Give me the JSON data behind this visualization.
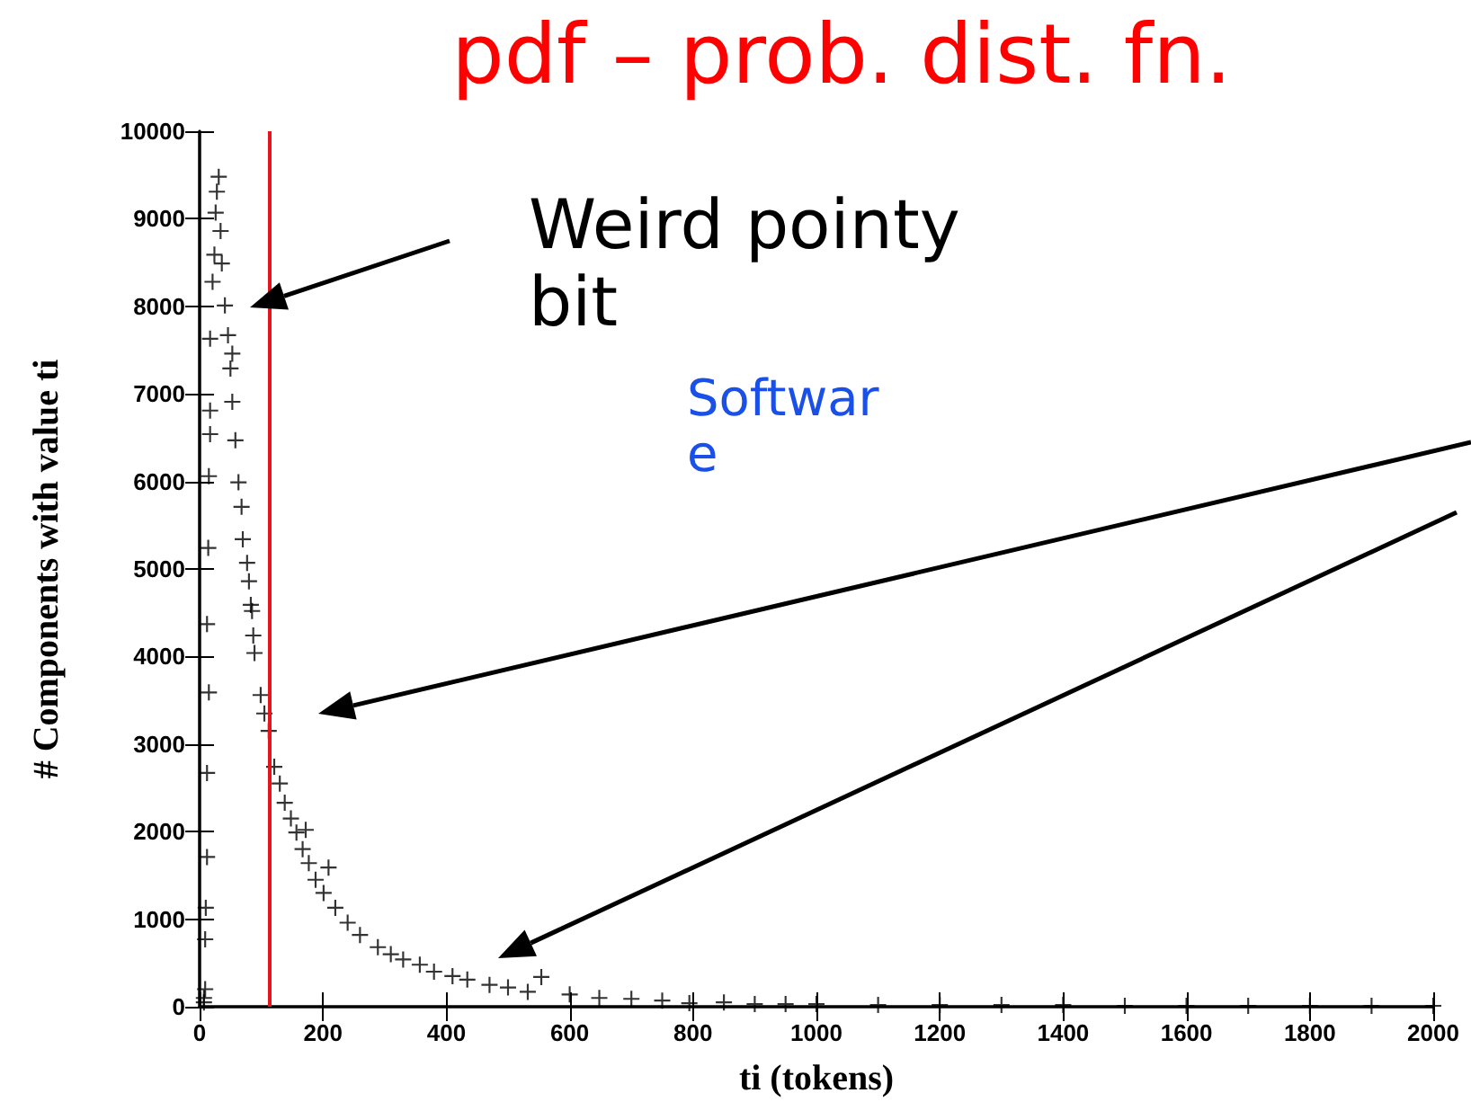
{
  "chart_data": {
    "type": "scatter",
    "title": "pdf – prob. dist. fn.",
    "xlabel": "ti (tokens)",
    "ylabel": "# Components with value ti",
    "x": [
      31,
      28,
      26,
      34,
      24,
      36,
      21,
      41,
      46,
      53,
      50,
      53,
      58,
      63,
      68,
      70,
      77,
      80,
      85,
      87,
      17,
      17,
      17,
      15,
      14,
      12,
      15,
      12,
      12,
      10,
      9,
      9,
      7,
      7,
      83,
      89,
      99,
      112,
      121,
      138,
      157,
      177,
      201,
      240,
      289,
      357,
      434,
      532,
      648,
      794,
      209,
      172,
      554,
      900,
      1000,
      1100,
      1200,
      1300,
      1400,
      1500,
      1600,
      1700,
      1800,
      1900,
      2000,
      105,
      130,
      148,
      167,
      188,
      220,
      260,
      310,
      330,
      380,
      410,
      470,
      500,
      600,
      700,
      750,
      850,
      950
    ],
    "values": [
      9480,
      9310,
      9070,
      8860,
      8590,
      8490,
      8280,
      8010,
      7670,
      7460,
      7290,
      6910,
      6470,
      5990,
      5710,
      5340,
      5070,
      4860,
      4520,
      4240,
      7630,
      6810,
      6540,
      6060,
      5240,
      4370,
      3590,
      2670,
      1710,
      1130,
      770,
      200,
      100,
      50,
      4590,
      4040,
      3560,
      3150,
      2740,
      2330,
      1990,
      1640,
      1300,
      960,
      680,
      480,
      310,
      170,
      100,
      40,
      1590,
      2020,
      340,
      30,
      30,
      20,
      20,
      20,
      20,
      10,
      10,
      10,
      10,
      10,
      10,
      3350,
      2550,
      2150,
      1800,
      1450,
      1130,
      820,
      600,
      540,
      400,
      350,
      250,
      220,
      140,
      90,
      70,
      50,
      30
    ],
    "color": "#000000",
    "marker": "cross",
    "grid": false,
    "xlim": [
      0,
      2000
    ],
    "xticks": [
      0,
      200,
      400,
      600,
      800,
      1000,
      1200,
      1400,
      1600,
      1800,
      2000
    ],
    "ylim": [
      0,
      10000
    ],
    "yticks": [
      0,
      1000,
      2000,
      3000,
      4000,
      5000,
      6000,
      7000,
      8000,
      9000,
      10000
    ],
    "ref_lines": [
      {
        "axis": "x",
        "value": 114,
        "color": "#e8141c",
        "line_style": "solid"
      }
    ],
    "annotations": [
      "Weird pointy bit",
      "Softwar e"
    ]
  }
}
